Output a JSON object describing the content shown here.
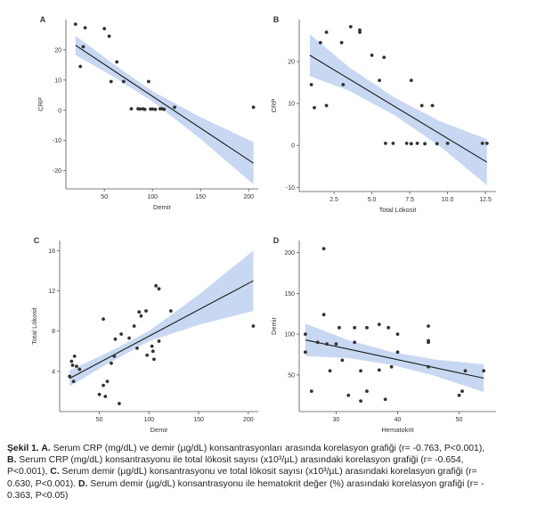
{
  "chart_data": [
    {
      "panel": "A",
      "type": "scatter",
      "xlabel": "Demir",
      "ylabel": "CRP",
      "xlim": [
        10,
        210
      ],
      "ylim": [
        -26,
        30
      ],
      "xticks": [
        50,
        100,
        150,
        200
      ],
      "yticks": [
        -20,
        -10,
        0,
        10,
        20
      ],
      "xticklabels": [
        "50",
        "100",
        "150",
        "200"
      ],
      "yticklabels": [
        "-20",
        "-10",
        "0",
        "10",
        "20"
      ],
      "fit": {
        "x": [
          20,
          205
        ],
        "y": [
          21.5,
          -17.5
        ]
      },
      "band_halfwidth": {
        "x": [
          20,
          60,
          100,
          150,
          205
        ],
        "w": [
          3.2,
          2.1,
          1.7,
          3.6,
          7.0
        ]
      },
      "points": [
        {
          "x": 20,
          "y": 28.5
        },
        {
          "x": 25,
          "y": 14.5
        },
        {
          "x": 28,
          "y": 21
        },
        {
          "x": 30,
          "y": 27.3
        },
        {
          "x": 50,
          "y": 27
        },
        {
          "x": 55,
          "y": 24.5
        },
        {
          "x": 57,
          "y": 9.5
        },
        {
          "x": 63,
          "y": 16
        },
        {
          "x": 70,
          "y": 9.5
        },
        {
          "x": 78,
          "y": 0.5
        },
        {
          "x": 85,
          "y": 0.5
        },
        {
          "x": 87,
          "y": 0.4
        },
        {
          "x": 90,
          "y": 0.5
        },
        {
          "x": 92,
          "y": 0.3
        },
        {
          "x": 96,
          "y": 9.5
        },
        {
          "x": 98,
          "y": 0.4
        },
        {
          "x": 100,
          "y": 0.4
        },
        {
          "x": 103,
          "y": 0.3
        },
        {
          "x": 108,
          "y": 0.5
        },
        {
          "x": 110,
          "y": 0.5
        },
        {
          "x": 112,
          "y": 0.3
        },
        {
          "x": 123,
          "y": 1
        },
        {
          "x": 205,
          "y": 1
        }
      ]
    },
    {
      "panel": "B",
      "type": "scatter",
      "xlabel": "Total Lökosit",
      "ylabel": "CRP",
      "xlim": [
        0.2,
        13.2
      ],
      "ylim": [
        -11,
        30
      ],
      "xticks": [
        2.5,
        5,
        7.5,
        10,
        12.5
      ],
      "yticks": [
        -10,
        0,
        10,
        20
      ],
      "xticklabels": [
        "2.5",
        "5.0",
        "7.5",
        "10.0",
        "12.5"
      ],
      "yticklabels": [
        "-10",
        "0",
        "10",
        "20"
      ],
      "fit": {
        "x": [
          0.9,
          12.6
        ],
        "y": [
          21.5,
          -4
        ]
      },
      "band_halfwidth": {
        "x": [
          0.9,
          3.5,
          6.5,
          9.5,
          12.6
        ],
        "w": [
          5.0,
          2.8,
          2.1,
          3.0,
          5.5
        ]
      },
      "points": [
        {
          "x": 1,
          "y": 14.5
        },
        {
          "x": 1.2,
          "y": 9
        },
        {
          "x": 1.6,
          "y": 24.5
        },
        {
          "x": 2,
          "y": 27
        },
        {
          "x": 2,
          "y": 9.5
        },
        {
          "x": 3,
          "y": 24.5
        },
        {
          "x": 3.1,
          "y": 14.5
        },
        {
          "x": 3.6,
          "y": 28.3
        },
        {
          "x": 4.2,
          "y": 27.5
        },
        {
          "x": 4.2,
          "y": 27
        },
        {
          "x": 5,
          "y": 21.5
        },
        {
          "x": 5.5,
          "y": 15.5
        },
        {
          "x": 5.8,
          "y": 21
        },
        {
          "x": 5.9,
          "y": 0.5
        },
        {
          "x": 6.4,
          "y": 0.5
        },
        {
          "x": 7.3,
          "y": 0.5
        },
        {
          "x": 7.6,
          "y": 0.4
        },
        {
          "x": 7.6,
          "y": 15.5
        },
        {
          "x": 8,
          "y": 0.5
        },
        {
          "x": 8.3,
          "y": 9.5
        },
        {
          "x": 8.5,
          "y": 0.4
        },
        {
          "x": 9,
          "y": 9.5
        },
        {
          "x": 9.3,
          "y": 0.4
        },
        {
          "x": 10,
          "y": 0.5
        },
        {
          "x": 12.3,
          "y": 0.5
        },
        {
          "x": 12.6,
          "y": 0.5
        }
      ]
    },
    {
      "panel": "C",
      "type": "scatter",
      "xlabel": "Demir",
      "ylabel": "Total Lökosit",
      "xlim": [
        10,
        210
      ],
      "ylim": [
        0,
        17
      ],
      "xticks": [
        50,
        100,
        150,
        200
      ],
      "yticks": [
        4,
        8,
        12,
        16
      ],
      "xticklabels": [
        "50",
        "100",
        "150",
        "200"
      ],
      "yticklabels": [
        "4",
        "8",
        "12",
        "16"
      ],
      "fit": {
        "x": [
          20,
          205
        ],
        "y": [
          3.3,
          13
        ]
      },
      "band_halfwidth": {
        "x": [
          20,
          60,
          100,
          150,
          205
        ],
        "w": [
          0.8,
          0.55,
          0.5,
          1.5,
          3.0
        ]
      },
      "points": [
        {
          "x": 20,
          "y": 3.5
        },
        {
          "x": 22,
          "y": 5
        },
        {
          "x": 23,
          "y": 4.6
        },
        {
          "x": 24,
          "y": 3
        },
        {
          "x": 25,
          "y": 5.5
        },
        {
          "x": 27,
          "y": 4.5
        },
        {
          "x": 30,
          "y": 4.2
        },
        {
          "x": 50,
          "y": 1.7
        },
        {
          "x": 54,
          "y": 9.2
        },
        {
          "x": 54,
          "y": 2.6
        },
        {
          "x": 56,
          "y": 1.5
        },
        {
          "x": 58,
          "y": 3
        },
        {
          "x": 62,
          "y": 4.8
        },
        {
          "x": 65,
          "y": 5.5
        },
        {
          "x": 66,
          "y": 7.2
        },
        {
          "x": 70,
          "y": 0.8
        },
        {
          "x": 72,
          "y": 7.7
        },
        {
          "x": 80,
          "y": 7.3
        },
        {
          "x": 85,
          "y": 8.5
        },
        {
          "x": 88,
          "y": 6.3
        },
        {
          "x": 90,
          "y": 9.9
        },
        {
          "x": 92,
          "y": 9.5
        },
        {
          "x": 97,
          "y": 10
        },
        {
          "x": 98,
          "y": 5.6
        },
        {
          "x": 103,
          "y": 6.5
        },
        {
          "x": 104,
          "y": 6
        },
        {
          "x": 105,
          "y": 5.2
        },
        {
          "x": 107,
          "y": 12.5
        },
        {
          "x": 110,
          "y": 12.2
        },
        {
          "x": 110,
          "y": 7
        },
        {
          "x": 122,
          "y": 10
        },
        {
          "x": 205,
          "y": 8.5
        }
      ]
    },
    {
      "panel": "D",
      "type": "scatter",
      "xlabel": "Hematokrit",
      "ylabel": "Demir",
      "xlim": [
        24,
        56
      ],
      "ylim": [
        5,
        215
      ],
      "xticks": [
        30,
        40,
        50
      ],
      "yticks": [
        50,
        100,
        150,
        200
      ],
      "xticklabels": [
        "30",
        "40",
        "50"
      ],
      "yticklabels": [
        "50",
        "100",
        "150",
        "200"
      ],
      "fit": {
        "x": [
          25,
          54
        ],
        "y": [
          93,
          46
        ]
      },
      "band_halfwidth": {
        "x": [
          25,
          32,
          39,
          46,
          54
        ],
        "w": [
          20,
          11,
          8,
          10,
          17
        ]
      },
      "points": [
        {
          "x": 25,
          "y": 100
        },
        {
          "x": 25,
          "y": 78
        },
        {
          "x": 26,
          "y": 30
        },
        {
          "x": 27,
          "y": 90
        },
        {
          "x": 28,
          "y": 205
        },
        {
          "x": 28,
          "y": 124
        },
        {
          "x": 28.5,
          "y": 88
        },
        {
          "x": 29,
          "y": 55
        },
        {
          "x": 30,
          "y": 88
        },
        {
          "x": 30.5,
          "y": 108
        },
        {
          "x": 31,
          "y": 68
        },
        {
          "x": 32,
          "y": 25
        },
        {
          "x": 33,
          "y": 108
        },
        {
          "x": 33,
          "y": 90
        },
        {
          "x": 34,
          "y": 55
        },
        {
          "x": 34,
          "y": 18
        },
        {
          "x": 35,
          "y": 108
        },
        {
          "x": 35,
          "y": 30
        },
        {
          "x": 37,
          "y": 112
        },
        {
          "x": 37,
          "y": 56
        },
        {
          "x": 38,
          "y": 20
        },
        {
          "x": 38.5,
          "y": 108
        },
        {
          "x": 39,
          "y": 60
        },
        {
          "x": 40,
          "y": 100
        },
        {
          "x": 40,
          "y": 78
        },
        {
          "x": 45,
          "y": 110
        },
        {
          "x": 45,
          "y": 92
        },
        {
          "x": 45,
          "y": 90
        },
        {
          "x": 45,
          "y": 60
        },
        {
          "x": 50,
          "y": 25
        },
        {
          "x": 50.5,
          "y": 30
        },
        {
          "x": 51,
          "y": 55
        },
        {
          "x": 54,
          "y": 55
        }
      ]
    }
  ],
  "caption": {
    "line1_bold": "Şekil 1. A.",
    "line1_text": " Serum CRP (mg/dL) ve demir (µg/dL) konsantrasyonları arasında korelasyon grafiği (r= -0.763, P<0.001),",
    "line2_bold": "B.",
    "line2_text": " Serum CRP (mg/dL) konsantrasyonu ile total lökosit sayısı (x10³/µL) arasındaki korelasyon grafiği (r= -0.654,",
    "line3_text": "P<0.001), ",
    "line3_bold": "C.",
    "line3_text2": " Serum demir (µg/dL) konsantrasyonu ve total lökosit sayısı (x10³/µL) arasındaki korelasyon grafiği (r=",
    "line4_text": "0.630, P<0.001). ",
    "line4_bold": "D.",
    "line4_text2": " Serum demir (µg/dL) konsantrasyonu ile hematokrit  değer (%) arasındaki korelasyon grafiği (r= -",
    "line5_text": "0.363, P<0.05)"
  },
  "colors": {
    "band": "#c9d8f2",
    "line": "#1a1a1a",
    "point": "#333333",
    "axis": "#555555",
    "text": "#333333"
  }
}
